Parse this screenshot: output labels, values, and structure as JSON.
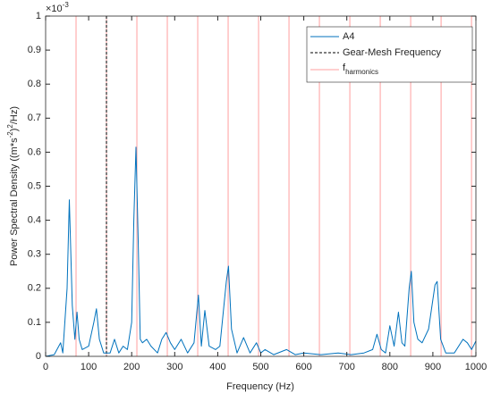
{
  "chart_data": {
    "type": "line",
    "xlabel": "Frequency (Hz)",
    "ylabel": [
      "Power Spectral Density ((m*s",
      "-2",
      ")",
      "2",
      "/Hz)"
    ],
    "yexponent": [
      "×10",
      "-3"
    ],
    "xlim": [
      0,
      1000
    ],
    "xticks": [
      0,
      100,
      200,
      300,
      400,
      500,
      600,
      700,
      800,
      900,
      1000
    ],
    "ylim": [
      0,
      1
    ],
    "yticks": [
      0,
      0.1,
      0.2,
      0.3,
      0.4,
      0.5,
      0.6,
      0.7,
      0.8,
      0.9,
      1
    ],
    "grid": false,
    "legend": "northeast",
    "series": [
      {
        "name": "A4",
        "color": "#0072bd",
        "x": [
          0,
          20,
          35,
          40,
          50,
          55,
          62,
          68,
          73,
          78,
          85,
          100,
          112,
          118,
          125,
          135,
          150,
          160,
          170,
          180,
          190,
          200,
          205,
          210,
          215,
          220,
          225,
          235,
          245,
          260,
          270,
          280,
          290,
          300,
          315,
          330,
          345,
          355,
          362,
          370,
          380,
          395,
          405,
          420,
          425,
          432,
          445,
          460,
          475,
          490,
          500,
          510,
          530,
          560,
          580,
          600,
          640,
          680,
          710,
          740,
          760,
          770,
          780,
          790,
          800,
          810,
          820,
          828,
          835,
          845,
          850,
          856,
          865,
          875,
          890,
          905,
          910,
          918,
          930,
          950,
          970,
          980,
          990,
          1000
        ],
        "values": [
          0,
          0.005,
          0.04,
          0.01,
          0.2,
          0.46,
          0.15,
          0.05,
          0.13,
          0.05,
          0.02,
          0.03,
          0.1,
          0.14,
          0.05,
          0.01,
          0.01,
          0.05,
          0.01,
          0.03,
          0.02,
          0.1,
          0.4,
          0.615,
          0.35,
          0.05,
          0.04,
          0.05,
          0.03,
          0.01,
          0.05,
          0.07,
          0.04,
          0.02,
          0.05,
          0.01,
          0.04,
          0.18,
          0.03,
          0.135,
          0.03,
          0.02,
          0.03,
          0.22,
          0.265,
          0.08,
          0.01,
          0.055,
          0.01,
          0.04,
          0.01,
          0.02,
          0.005,
          0.02,
          0.005,
          0.01,
          0.005,
          0.01,
          0.005,
          0.01,
          0.02,
          0.065,
          0.02,
          0.01,
          0.09,
          0.03,
          0.13,
          0.04,
          0.03,
          0.2,
          0.25,
          0.1,
          0.05,
          0.04,
          0.08,
          0.21,
          0.22,
          0.05,
          0.01,
          0.01,
          0.05,
          0.04,
          0.02,
          0.045
        ]
      }
    ],
    "gear_mesh": {
      "name": "Gear-Mesh Frequency",
      "color": "#000000",
      "x": 141.4
    },
    "harmonics": {
      "name": [
        "f",
        "harmonics"
      ],
      "color": "#ff9f9f",
      "x": [
        70.7,
        141.4,
        212.1,
        282.8,
        353.5,
        424.2,
        494.9,
        565.6,
        636.3,
        707,
        777.7,
        848.4,
        919.1,
        989.8
      ]
    }
  }
}
